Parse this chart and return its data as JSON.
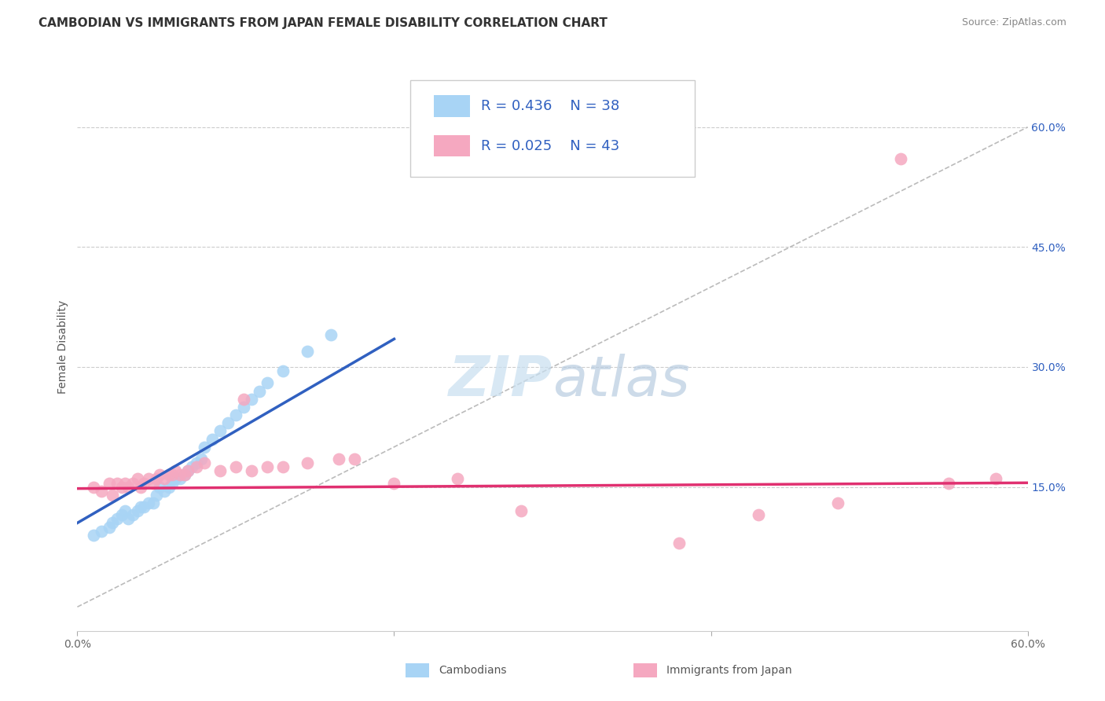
{
  "title": "CAMBODIAN VS IMMIGRANTS FROM JAPAN FEMALE DISABILITY CORRELATION CHART",
  "source": "Source: ZipAtlas.com",
  "ylabel": "Female Disability",
  "xlim": [
    0.0,
    0.6
  ],
  "ylim": [
    -0.03,
    0.68
  ],
  "yticks": [
    0.15,
    0.3,
    0.45,
    0.6
  ],
  "yticklabels": [
    "15.0%",
    "30.0%",
    "45.0%",
    "60.0%"
  ],
  "R_cambodian": 0.436,
  "N_cambodian": 38,
  "R_japan": 0.025,
  "N_japan": 43,
  "color_cambodian": "#A8D4F5",
  "color_japan": "#F5A8C0",
  "line_color_cambodian": "#3060C0",
  "line_color_japan": "#E03070",
  "diagonal_color": "#BBBBBB",
  "background_color": "#FFFFFF",
  "watermark_zip": "ZIP",
  "watermark_atlas": "atlas",
  "cambodian_x": [
    0.01,
    0.015,
    0.02,
    0.022,
    0.025,
    0.028,
    0.03,
    0.032,
    0.035,
    0.038,
    0.04,
    0.042,
    0.045,
    0.048,
    0.05,
    0.052,
    0.055,
    0.058,
    0.06,
    0.062,
    0.065,
    0.068,
    0.07,
    0.072,
    0.075,
    0.078,
    0.08,
    0.085,
    0.09,
    0.095,
    0.1,
    0.105,
    0.11,
    0.115,
    0.12,
    0.13,
    0.145,
    0.16
  ],
  "cambodian_y": [
    0.09,
    0.095,
    0.1,
    0.105,
    0.11,
    0.115,
    0.12,
    0.11,
    0.115,
    0.12,
    0.125,
    0.125,
    0.13,
    0.13,
    0.14,
    0.15,
    0.145,
    0.15,
    0.155,
    0.16,
    0.16,
    0.165,
    0.17,
    0.175,
    0.18,
    0.185,
    0.2,
    0.21,
    0.22,
    0.23,
    0.24,
    0.25,
    0.26,
    0.27,
    0.28,
    0.295,
    0.32,
    0.34
  ],
  "japan_x": [
    0.01,
    0.015,
    0.02,
    0.022,
    0.025,
    0.028,
    0.03,
    0.032,
    0.035,
    0.038,
    0.04,
    0.042,
    0.045,
    0.048,
    0.05,
    0.052,
    0.055,
    0.058,
    0.06,
    0.062,
    0.065,
    0.068,
    0.07,
    0.075,
    0.08,
    0.09,
    0.1,
    0.105,
    0.11,
    0.12,
    0.13,
    0.145,
    0.165,
    0.175,
    0.2,
    0.24,
    0.28,
    0.38,
    0.43,
    0.48,
    0.52,
    0.55,
    0.58
  ],
  "japan_y": [
    0.15,
    0.145,
    0.155,
    0.14,
    0.155,
    0.15,
    0.155,
    0.15,
    0.155,
    0.16,
    0.15,
    0.155,
    0.16,
    0.155,
    0.16,
    0.165,
    0.16,
    0.165,
    0.165,
    0.17,
    0.165,
    0.165,
    0.17,
    0.175,
    0.18,
    0.17,
    0.175,
    0.26,
    0.17,
    0.175,
    0.175,
    0.18,
    0.185,
    0.185,
    0.155,
    0.16,
    0.12,
    0.08,
    0.115,
    0.13,
    0.56,
    0.155,
    0.16
  ],
  "title_fontsize": 11,
  "axis_label_fontsize": 10,
  "tick_fontsize": 10,
  "legend_fontsize": 13,
  "watermark_fontsize": 52,
  "source_fontsize": 9
}
